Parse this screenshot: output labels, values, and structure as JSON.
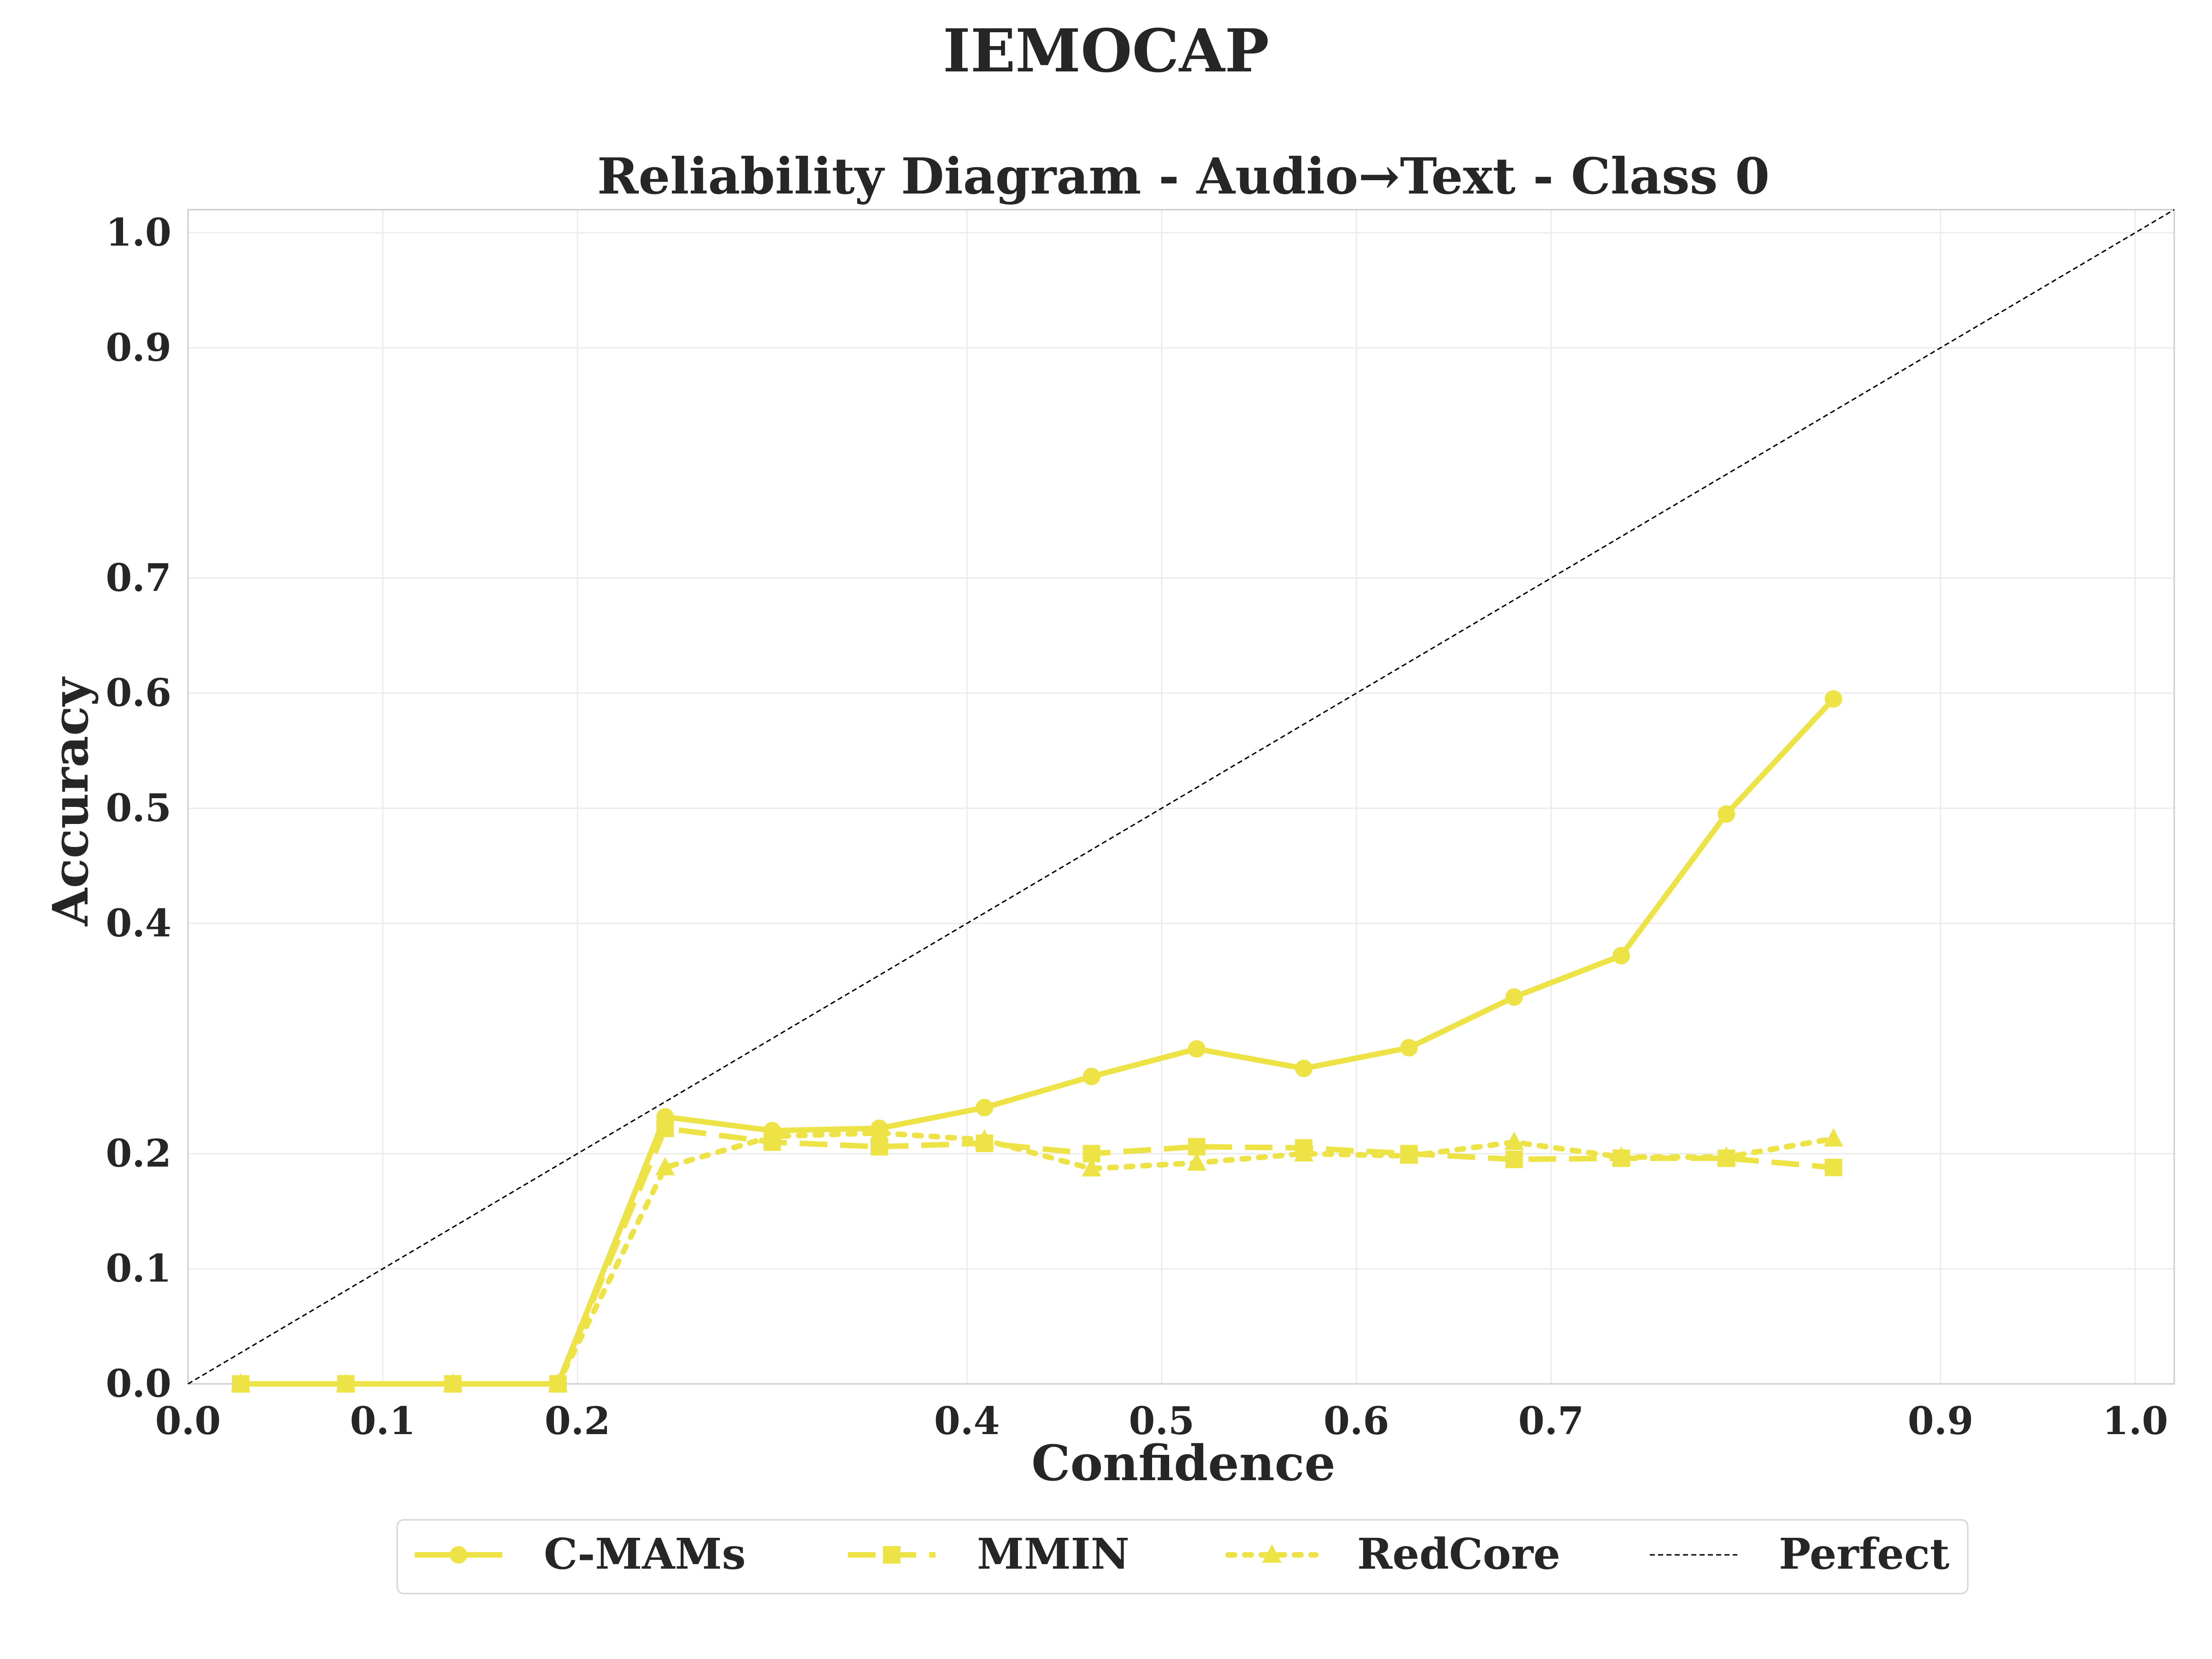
{
  "chart_data": {
    "type": "line",
    "suptitle": "IEMOCAP",
    "title": "Reliability Diagram - Audio→Text - Class 0",
    "xlabel": "Confidence",
    "ylabel": "Accuracy",
    "xlim": [
      0.0,
      1.02
    ],
    "ylim": [
      0.0,
      1.02
    ],
    "x_axis_tick_values": [
      0.0,
      0.1,
      0.2,
      0.4,
      0.5,
      0.6,
      0.7,
      0.9,
      1.0
    ],
    "x_axis_tick_labels": [
      "0.0",
      "0.1",
      "0.2",
      "0.4",
      "0.5",
      "0.6",
      "0.7",
      "0.9",
      "1.0"
    ],
    "y_axis_tick_values": [
      0.0,
      0.1,
      0.2,
      0.4,
      0.5,
      0.6,
      0.7,
      0.9,
      1.0
    ],
    "y_axis_tick_labels": [
      "0.0",
      "0.1",
      "0.2",
      "0.4",
      "0.5",
      "0.6",
      "0.7",
      "0.9",
      "1.0"
    ],
    "grid": true,
    "legend_position": "bottom-center",
    "line_color": "#ede246",
    "series": [
      {
        "name": "C-MAMs",
        "marker": "circle",
        "line_style": "solid",
        "x": [
          0.027,
          0.081,
          0.136,
          0.19,
          0.245,
          0.3,
          0.355,
          0.409,
          0.464,
          0.518,
          0.573,
          0.627,
          0.681,
          0.736,
          0.79,
          0.845
        ],
        "y": [
          0.0,
          0.0,
          0.0,
          0.0,
          0.232,
          0.22,
          0.222,
          0.24,
          0.267,
          0.291,
          0.274,
          0.292,
          0.336,
          0.372,
          0.495,
          0.595
        ]
      },
      {
        "name": "MMIN",
        "marker": "square",
        "line_style": "dashed",
        "x": [
          0.027,
          0.081,
          0.136,
          0.19,
          0.245,
          0.3,
          0.355,
          0.409,
          0.464,
          0.518,
          0.573,
          0.627,
          0.681,
          0.736,
          0.79,
          0.845
        ],
        "y": [
          0.0,
          0.0,
          0.0,
          0.0,
          0.222,
          0.21,
          0.206,
          0.209,
          0.2,
          0.206,
          0.205,
          0.2,
          0.195,
          0.196,
          0.196,
          0.188
        ]
      },
      {
        "name": "RedCore",
        "marker": "triangle",
        "line_style": "dotted",
        "x": [
          0.027,
          0.081,
          0.136,
          0.19,
          0.245,
          0.3,
          0.355,
          0.409,
          0.464,
          0.518,
          0.573,
          0.627,
          0.681,
          0.736,
          0.79,
          0.845
        ],
        "y": [
          0.0,
          0.0,
          0.0,
          0.0,
          0.188,
          0.215,
          0.218,
          0.212,
          0.187,
          0.192,
          0.2,
          0.198,
          0.21,
          0.197,
          0.197,
          0.213
        ]
      },
      {
        "name": "Perfect",
        "marker": "none",
        "line_style": "thin-dashed",
        "color": "#000000",
        "x": [
          0.0,
          1.02
        ],
        "y": [
          0.0,
          1.02
        ]
      }
    ]
  }
}
